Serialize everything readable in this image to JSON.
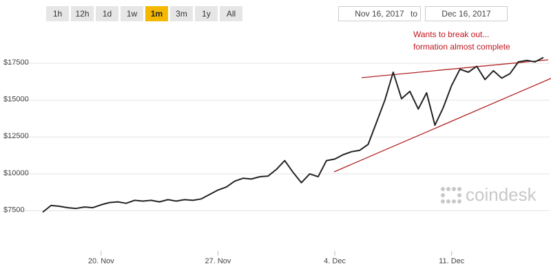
{
  "range_buttons": [
    "1h",
    "12h",
    "1d",
    "1w",
    "1m",
    "3m",
    "1y",
    "All"
  ],
  "active_button_index": 4,
  "date_range": {
    "from": "Nov 16, 2017",
    "separator": "to",
    "to": "Dec 16, 2017"
  },
  "chart_data": {
    "type": "line",
    "categories": [
      null,
      null,
      null,
      null,
      null,
      null,
      null,
      "20. Nov",
      null,
      null,
      null,
      null,
      null,
      null,
      null,
      null,
      null,
      null,
      null,
      null,
      null,
      "27. Nov",
      null,
      null,
      null,
      null,
      null,
      null,
      null,
      null,
      null,
      null,
      null,
      null,
      null,
      "4. Dec",
      null,
      null,
      null,
      null,
      null,
      null,
      null,
      null,
      null,
      null,
      null,
      null,
      null,
      "11. Dec",
      null,
      null,
      null,
      null,
      null,
      null,
      null,
      null,
      null,
      null,
      null
    ],
    "values": [
      7400,
      7850,
      7800,
      7700,
      7650,
      7750,
      7700,
      7900,
      8050,
      8100,
      8000,
      8200,
      8150,
      8200,
      8100,
      8250,
      8150,
      8250,
      8200,
      8300,
      8600,
      8900,
      9100,
      9500,
      9700,
      9650,
      9800,
      9850,
      10300,
      10900,
      10100,
      9400,
      10000,
      9800,
      10900,
      11000,
      11300,
      11500,
      11600,
      12000,
      13500,
      15000,
      16900,
      15100,
      15600,
      14400,
      15500,
      13300,
      14500,
      16000,
      17100,
      16900,
      17300,
      16400,
      17000,
      16500,
      16800,
      17600,
      17700,
      17600,
      17900
    ],
    "color": "#222222",
    "ylim": [
      5700,
      19700
    ],
    "yticks": [
      {
        "value": 7500,
        "label": "$7500"
      },
      {
        "value": 10000,
        "label": "$10000"
      },
      {
        "value": 12500,
        "label": "$12500"
      },
      {
        "value": 15000,
        "label": "$15000"
      },
      {
        "value": 17500,
        "label": "$17500"
      }
    ],
    "grid": true,
    "annotation": [
      "Wants to break out...",
      "formation almost complete"
    ],
    "watermark": "coindesk"
  }
}
